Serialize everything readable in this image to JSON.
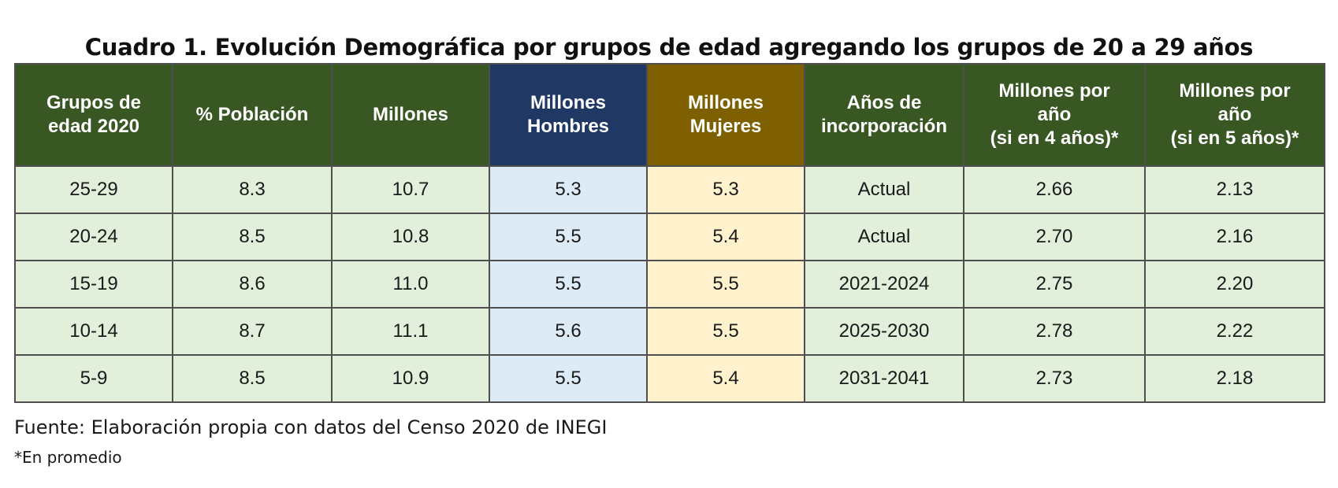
{
  "title": "Cuadro 1. Evolución Demográfica por grupos de edad agregando los grupos de 20 a 29 años",
  "headers": [
    {
      "lines": [
        "Grupos de",
        "edad 2020"
      ]
    },
    {
      "lines": [
        "% Población"
      ]
    },
    {
      "lines": [
        "Millones"
      ]
    },
    {
      "lines": [
        "Millones",
        "Hombres"
      ]
    },
    {
      "lines": [
        "Millones",
        "Mujeres"
      ]
    },
    {
      "lines": [
        "Años de",
        "incorporación"
      ]
    },
    {
      "lines": [
        "Millones por",
        "año",
        "(si en 4 años)*"
      ]
    },
    {
      "lines": [
        "Millones por",
        "año",
        "(si en 5 años)*"
      ]
    }
  ],
  "rows": [
    [
      "25-29",
      "8.3",
      "10.7",
      "5.3",
      "5.3",
      "Actual",
      "2.66",
      "2.13"
    ],
    [
      "20-24",
      "8.5",
      "10.8",
      "5.5",
      "5.4",
      "Actual",
      "2.70",
      "2.16"
    ],
    [
      "15-19",
      "8.6",
      "11.0",
      "5.5",
      "5.5",
      "2021-2024",
      "2.75",
      "2.20"
    ],
    [
      "10-14",
      "8.7",
      "11.1",
      "5.6",
      "5.5",
      "2025-2030",
      "2.78",
      "2.22"
    ],
    [
      "5-9",
      "8.5",
      "10.9",
      "5.5",
      "5.4",
      "2031-2041",
      "2.73",
      "2.18"
    ]
  ],
  "source": "Fuente: Elaboración propia con datos del Censo 2020 de INEGI",
  "note": "*En promedio",
  "colors": {
    "header_green": "#385723",
    "header_hombres": "#1f3864",
    "header_mujeres": "#7f6000",
    "cell_green": "#e2efda",
    "cell_hombres": "#ddebf7",
    "cell_mujeres": "#fff2cc"
  }
}
